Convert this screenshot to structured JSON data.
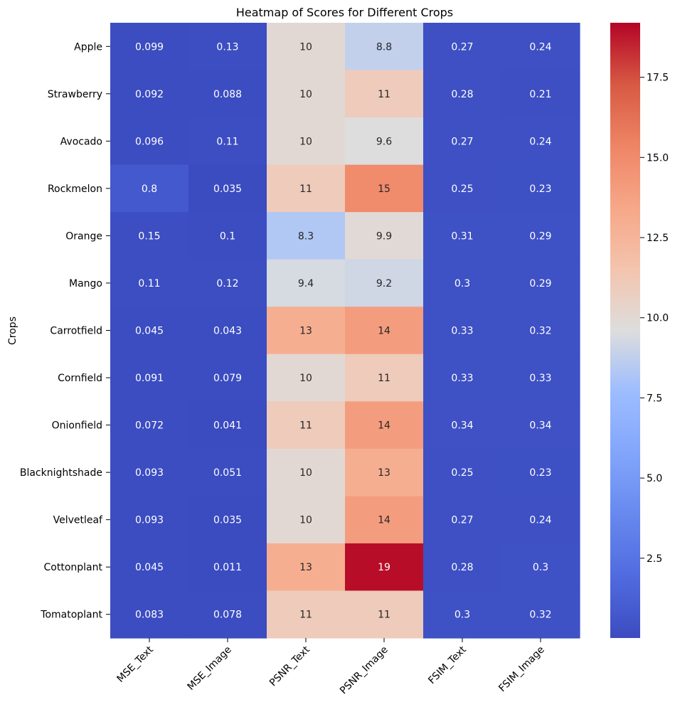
{
  "chart_data": {
    "type": "heatmap",
    "title": "Heatmap of Scores for Different Crops",
    "xlabel": "",
    "ylabel": "Crops",
    "columns": [
      "MSE_Text",
      "MSE_Image",
      "PSNR_Text",
      "PSNR_Image",
      "FSIM_Text",
      "FSIM_Image"
    ],
    "rows": [
      "Apple",
      "Strawberry",
      "Avocado",
      "Rockmelon",
      "Orange",
      "Mango",
      "Carrotfield",
      "Cornfield",
      "Onionfield",
      "Blacknightshade",
      "Velvetleaf",
      "Cottonplant",
      "Tomatoplant"
    ],
    "values": [
      [
        0.099,
        0.13,
        10,
        8.8,
        0.27,
        0.24
      ],
      [
        0.092,
        0.088,
        10,
        11,
        0.28,
        0.21
      ],
      [
        0.096,
        0.11,
        10,
        9.6,
        0.27,
        0.24
      ],
      [
        0.8,
        0.035,
        11,
        15,
        0.25,
        0.23
      ],
      [
        0.15,
        0.1,
        8.3,
        9.9,
        0.31,
        0.29
      ],
      [
        0.11,
        0.12,
        9.4,
        9.2,
        0.3,
        0.29
      ],
      [
        0.045,
        0.043,
        13,
        14,
        0.33,
        0.32
      ],
      [
        0.091,
        0.079,
        10,
        11,
        0.33,
        0.33
      ],
      [
        0.072,
        0.041,
        11,
        14,
        0.34,
        0.34
      ],
      [
        0.093,
        0.051,
        10,
        13,
        0.25,
        0.23
      ],
      [
        0.093,
        0.035,
        10,
        14,
        0.27,
        0.24
      ],
      [
        0.045,
        0.011,
        13,
        19,
        0.28,
        0.3
      ],
      [
        0.083,
        0.078,
        11,
        11,
        0.3,
        0.32
      ]
    ],
    "colorbar": {
      "colormap": "coolwarm",
      "vmin": 0.011,
      "vmax": 19.2,
      "ticks": [
        2.5,
        5.0,
        7.5,
        10.0,
        12.5,
        15.0,
        17.5
      ],
      "tick_labels": [
        "2.5",
        "5.0",
        "7.5",
        "10.0",
        "12.5",
        "15.0",
        "17.5"
      ]
    }
  }
}
